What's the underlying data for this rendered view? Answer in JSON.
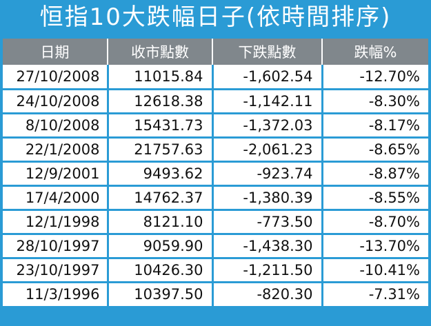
{
  "title": "恒指10大跌幅日子(依時間排序)",
  "columns": [
    "日期",
    "收市點數",
    "下跌點數",
    "跌幅%"
  ],
  "rows": [
    [
      "27/10/2008",
      "11015.84",
      "-1,602.54",
      "-12.70%"
    ],
    [
      "24/10/2008",
      "12618.38",
      "-1,142.11",
      "-8.30%"
    ],
    [
      "8/10/2008",
      "15431.73",
      "-1,372.03",
      "-8.17%"
    ],
    [
      "22/1/2008",
      "21757.63",
      "-2,061.23",
      "-8.65%"
    ],
    [
      "12/9/2001",
      "9493.62",
      "-923.74",
      "-8.87%"
    ],
    [
      "17/4/2000",
      "14762.37",
      "-1,380.39",
      "-8.55%"
    ],
    [
      "12/1/1998",
      "8121.10",
      "-773.50",
      "-8.70%"
    ],
    [
      "28/10/1997",
      "9059.90",
      "-1,438.30",
      "-13.70%"
    ],
    [
      "23/10/1997",
      "10426.30",
      "-1,211.50",
      "-10.41%"
    ],
    [
      "11/3/1996",
      "10397.50",
      "-820.30",
      "-7.31%"
    ]
  ],
  "colors": {
    "frame": "#2a9bd5",
    "header_bg": "#80878c"
  }
}
